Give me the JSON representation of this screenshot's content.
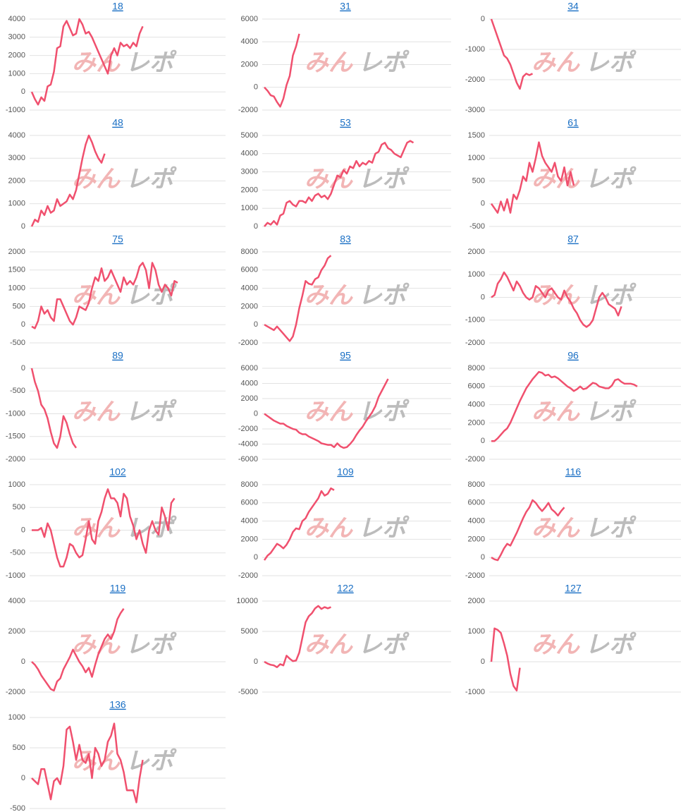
{
  "watermark": [
    "みん",
    "レポ"
  ],
  "chart_data": [
    {
      "type": "line",
      "title": "18",
      "ylim": [
        -1000,
        4000
      ],
      "yticks": [
        -1000,
        0,
        1000,
        2000,
        3000,
        4000
      ],
      "color": "#f0506e",
      "grid": true,
      "values": [
        0,
        -400,
        -700,
        -300,
        -500,
        300,
        400,
        1100,
        2400,
        2500,
        3600,
        3900,
        3500,
        3100,
        3200,
        4000,
        3700,
        3200,
        3300,
        3000,
        2600,
        2200,
        1800,
        1400,
        1000,
        2000,
        2400,
        2000,
        2700,
        2500,
        2600,
        2400,
        2700,
        2500,
        3200,
        3600
      ]
    },
    {
      "type": "line",
      "title": "31",
      "ylim": [
        -2000,
        6000
      ],
      "yticks": [
        -2000,
        0,
        2000,
        4000,
        6000
      ],
      "color": "#f0506e",
      "grid": true,
      "values": [
        0,
        -300,
        -700,
        -800,
        -1300,
        -1700,
        -1000,
        200,
        1000,
        2800,
        3600,
        4700
      ]
    },
    {
      "type": "line",
      "title": "34",
      "ylim": [
        -3000,
        0
      ],
      "yticks": [
        -3000,
        -2000,
        -1000,
        0
      ],
      "color": "#f0506e",
      "grid": true,
      "values": [
        0,
        -300,
        -600,
        -900,
        -1200,
        -1300,
        -1500,
        -1800,
        -2100,
        -2300,
        -1900,
        -1800,
        -1850,
        -1800
      ]
    },
    {
      "type": "line",
      "title": "48",
      "ylim": [
        0,
        4000
      ],
      "yticks": [
        0,
        1000,
        2000,
        3000,
        4000
      ],
      "color": "#f0506e",
      "grid": true,
      "values": [
        0,
        300,
        200,
        700,
        500,
        900,
        600,
        700,
        1200,
        900,
        1000,
        1100,
        1400,
        1200,
        1600,
        2300,
        3000,
        3600,
        4000,
        3700,
        3300,
        3000,
        2800,
        3200
      ]
    },
    {
      "type": "line",
      "title": "53",
      "ylim": [
        0,
        5000
      ],
      "yticks": [
        0,
        1000,
        2000,
        3000,
        4000,
        5000
      ],
      "color": "#f0506e",
      "grid": true,
      "values": [
        0,
        200,
        100,
        300,
        100,
        600,
        700,
        1300,
        1400,
        1200,
        1100,
        1400,
        1400,
        1300,
        1600,
        1400,
        1700,
        1800,
        1600,
        1700,
        1500,
        1800,
        2300,
        2800,
        2700,
        3100,
        2900,
        3300,
        3200,
        3600,
        3300,
        3500,
        3400,
        3600,
        3500,
        4000,
        4100,
        4500,
        4600,
        4300,
        4200,
        4000,
        3900,
        3800,
        4200,
        4600,
        4700,
        4600
      ]
    },
    {
      "type": "line",
      "title": "61",
      "ylim": [
        -500,
        1500
      ],
      "yticks": [
        -500,
        0,
        500,
        1000,
        1500
      ],
      "color": "#f0506e",
      "grid": true,
      "values": [
        0,
        -100,
        -200,
        50,
        -150,
        100,
        -200,
        200,
        100,
        300,
        600,
        500,
        900,
        700,
        1000,
        1350,
        1050,
        900,
        800,
        700,
        900,
        600,
        500,
        800,
        400,
        700,
        400
      ]
    },
    {
      "type": "line",
      "title": "75",
      "ylim": [
        -500,
        2000
      ],
      "yticks": [
        -500,
        0,
        500,
        1000,
        1500,
        2000
      ],
      "color": "#f0506e",
      "grid": true,
      "values": [
        -50,
        -100,
        100,
        500,
        300,
        400,
        200,
        100,
        700,
        700,
        500,
        300,
        100,
        0,
        200,
        500,
        450,
        400,
        600,
        1000,
        1300,
        1200,
        1550,
        1200,
        1300,
        1500,
        1300,
        1100,
        900,
        1300,
        1100,
        1200,
        1100,
        1300,
        1600,
        1700,
        1500,
        1000,
        1700,
        1500,
        1100,
        900,
        1100,
        1000,
        800,
        1200,
        1150
      ]
    },
    {
      "type": "line",
      "title": "83",
      "ylim": [
        -2000,
        8000
      ],
      "yticks": [
        -2000,
        0,
        2000,
        4000,
        6000,
        8000
      ],
      "color": "#f0506e",
      "grid": true,
      "values": [
        0,
        -200,
        -400,
        -600,
        -200,
        -600,
        -1000,
        -1400,
        -1800,
        -1300,
        0,
        1800,
        3200,
        4800,
        4500,
        4400,
        5000,
        5200,
        6000,
        6500,
        7300,
        7600
      ]
    },
    {
      "type": "line",
      "title": "87",
      "ylim": [
        -2000,
        2000
      ],
      "yticks": [
        -2000,
        -1000,
        0,
        1000,
        2000
      ],
      "color": "#f0506e",
      "grid": true,
      "values": [
        0,
        100,
        600,
        800,
        1100,
        900,
        600,
        300,
        700,
        500,
        200,
        0,
        -100,
        0,
        500,
        400,
        200,
        0,
        300,
        400,
        200,
        0,
        -100,
        300,
        0,
        -200,
        -500,
        -700,
        -1000,
        -1200,
        -1300,
        -1200,
        -1000,
        -500,
        0,
        200,
        0,
        -300,
        -400,
        -500,
        -800,
        -400
      ]
    },
    {
      "type": "line",
      "title": "89",
      "ylim": [
        -2000,
        0
      ],
      "yticks": [
        -2000,
        -1500,
        -1000,
        -500,
        0
      ],
      "color": "#f0506e",
      "grid": true,
      "values": [
        0,
        -300,
        -500,
        -800,
        -900,
        -1100,
        -1400,
        -1650,
        -1750,
        -1500,
        -1050,
        -1200,
        -1450,
        -1650,
        -1750
      ]
    },
    {
      "type": "line",
      "title": "95",
      "ylim": [
        -6000,
        6000
      ],
      "yticks": [
        -6000,
        -4000,
        -2000,
        0,
        2000,
        4000,
        6000
      ],
      "color": "#f0506e",
      "grid": true,
      "values": [
        0,
        -300,
        -600,
        -900,
        -1100,
        -1300,
        -1300,
        -1600,
        -1800,
        -2000,
        -2100,
        -2500,
        -2700,
        -2700,
        -3000,
        -3200,
        -3400,
        -3600,
        -3900,
        -4000,
        -4100,
        -4100,
        -4400,
        -3900,
        -4300,
        -4500,
        -4400,
        -4000,
        -3500,
        -2800,
        -2200,
        -1700,
        -1000,
        -400,
        200,
        1000,
        2200,
        3000,
        3800,
        4600
      ]
    },
    {
      "type": "line",
      "title": "96",
      "ylim": [
        -2000,
        8000
      ],
      "yticks": [
        -2000,
        0,
        2000,
        4000,
        6000,
        8000
      ],
      "color": "#f0506e",
      "grid": true,
      "values": [
        0,
        0,
        300,
        700,
        1100,
        1400,
        2000,
        2800,
        3600,
        4400,
        5100,
        5800,
        6300,
        6800,
        7200,
        7600,
        7500,
        7200,
        7300,
        7000,
        7100,
        6900,
        6600,
        6300,
        6000,
        5800,
        5500,
        5700,
        6000,
        5700,
        5800,
        6100,
        6400,
        6300,
        6000,
        5900,
        5800,
        5800,
        6100,
        6700,
        6800,
        6500,
        6300,
        6300,
        6300,
        6200,
        6000
      ]
    },
    {
      "type": "line",
      "title": "102",
      "ylim": [
        -1000,
        1000
      ],
      "yticks": [
        -1000,
        -500,
        0,
        500,
        1000
      ],
      "color": "#f0506e",
      "grid": true,
      "values": [
        0,
        0,
        0,
        50,
        -150,
        150,
        0,
        -300,
        -600,
        -800,
        -800,
        -600,
        -300,
        -350,
        -500,
        -600,
        -550,
        -200,
        200,
        -200,
        -300,
        200,
        400,
        700,
        900,
        700,
        700,
        600,
        300,
        800,
        700,
        300,
        100,
        -200,
        0,
        -300,
        -500,
        0,
        200,
        0,
        -100,
        500,
        300,
        0,
        600,
        700
      ]
    },
    {
      "type": "line",
      "title": "109",
      "ylim": [
        -2000,
        8000
      ],
      "yticks": [
        -2000,
        0,
        2000,
        4000,
        6000,
        8000
      ],
      "color": "#f0506e",
      "grid": true,
      "values": [
        -300,
        200,
        500,
        1000,
        1500,
        1300,
        1000,
        1400,
        2000,
        2800,
        3200,
        3100,
        4000,
        4300,
        5000,
        5500,
        6000,
        6500,
        7300,
        6800,
        7000,
        7600,
        7400
      ]
    },
    {
      "type": "line",
      "title": "116",
      "ylim": [
        -2000,
        8000
      ],
      "yticks": [
        -2000,
        0,
        2000,
        4000,
        6000,
        8000
      ],
      "color": "#f0506e",
      "grid": true,
      "values": [
        0,
        -200,
        -300,
        300,
        1000,
        1500,
        1300,
        2000,
        2700,
        3500,
        4300,
        5000,
        5500,
        6300,
        6000,
        5500,
        5100,
        5500,
        6000,
        5300,
        5000,
        4600,
        5100,
        5500
      ]
    },
    {
      "type": "line",
      "title": "119",
      "ylim": [
        -2000,
        4000
      ],
      "yticks": [
        -2000,
        0,
        2000,
        4000
      ],
      "color": "#f0506e",
      "grid": true,
      "values": [
        0,
        -200,
        -500,
        -900,
        -1200,
        -1500,
        -1800,
        -1900,
        -1300,
        -1100,
        -500,
        -100,
        300,
        800,
        400,
        0,
        -300,
        -700,
        -400,
        -1000,
        -200,
        500,
        1000,
        1500,
        1800,
        1500,
        2000,
        2800,
        3200,
        3500
      ]
    },
    {
      "type": "line",
      "title": "122",
      "ylim": [
        -5000,
        10000
      ],
      "yticks": [
        -5000,
        0,
        5000,
        10000
      ],
      "color": "#f0506e",
      "grid": true,
      "values": [
        0,
        -300,
        -500,
        -600,
        -900,
        -400,
        -600,
        1000,
        500,
        100,
        200,
        1500,
        4000,
        6500,
        7500,
        8000,
        8800,
        9200,
        8700,
        9000,
        8800,
        9000
      ]
    },
    {
      "type": "line",
      "title": "127",
      "ylim": [
        -1000,
        2000
      ],
      "yticks": [
        -1000,
        0,
        1000,
        2000
      ],
      "color": "#f0506e",
      "grid": true,
      "values": [
        0,
        1100,
        1050,
        950,
        600,
        200,
        -400,
        -800,
        -950,
        -200
      ]
    },
    {
      "type": "line",
      "title": "136",
      "ylim": [
        -500,
        1000
      ],
      "yticks": [
        -500,
        0,
        500,
        1000
      ],
      "color": "#f0506e",
      "grid": true,
      "values": [
        0,
        -50,
        -100,
        150,
        150,
        -100,
        -350,
        -50,
        0,
        -100,
        200,
        800,
        850,
        600,
        300,
        550,
        300,
        250,
        400,
        0,
        500,
        400,
        200,
        300,
        600,
        700,
        900,
        400,
        300,
        100,
        -200,
        -200,
        -200,
        -400,
        0,
        300
      ]
    }
  ]
}
